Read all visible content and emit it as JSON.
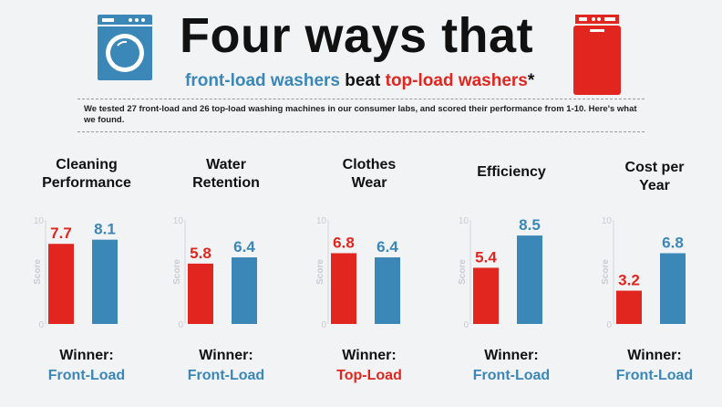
{
  "header": {
    "title": "Four ways that",
    "subtitle_front": "front-load washers",
    "subtitle_mid": "beat",
    "subtitle_top": "top-load washers",
    "subtitle_star": "*",
    "note": "We tested 27 front-load and 26 top-load washing machines in our consumer labs, and scored their performance from 1-10. Here's what we found."
  },
  "icons": {
    "left": "front-load-washer-icon",
    "right": "top-load-washer-icon"
  },
  "colors": {
    "top_load": "#e0261f",
    "front_load": "#3a87b8",
    "axis_text": "#c8ccd1"
  },
  "chart_data": [
    {
      "type": "bar",
      "title": "Cleaning Performance",
      "categories": [
        "Top-Load",
        "Front-Load"
      ],
      "values": [
        7.7,
        8.1
      ],
      "ylabel": "Score",
      "ylim": [
        0,
        10
      ],
      "yticks": [
        "10",
        "0"
      ],
      "winner_label": "Winner:",
      "winner": "Front-Load"
    },
    {
      "type": "bar",
      "title": "Water Retention",
      "categories": [
        "Top-Load",
        "Front-Load"
      ],
      "values": [
        5.8,
        6.4
      ],
      "ylabel": "Score",
      "ylim": [
        0,
        10
      ],
      "yticks": [
        "10",
        "0"
      ],
      "winner_label": "Winner:",
      "winner": "Front-Load"
    },
    {
      "type": "bar",
      "title": "Clothes Wear",
      "categories": [
        "Top-Load",
        "Front-Load"
      ],
      "values": [
        6.8,
        6.4
      ],
      "ylabel": "Score",
      "ylim": [
        0,
        10
      ],
      "yticks": [
        "10",
        "0"
      ],
      "winner_label": "Winner:",
      "winner": "Top-Load"
    },
    {
      "type": "bar",
      "title": "Efficiency",
      "categories": [
        "Top-Load",
        "Front-Load"
      ],
      "values": [
        5.4,
        8.5
      ],
      "ylabel": "Score",
      "ylim": [
        0,
        10
      ],
      "yticks": [
        "10",
        "0"
      ],
      "winner_label": "Winner:",
      "winner": "Front-Load"
    },
    {
      "type": "bar",
      "title": "Cost per Year",
      "categories": [
        "Top-Load",
        "Front-Load"
      ],
      "values": [
        3.2,
        6.8
      ],
      "ylabel": "Score",
      "ylim": [
        0,
        10
      ],
      "yticks": [
        "10",
        "0"
      ],
      "winner_label": "Winner:",
      "winner": "Front-Load"
    }
  ]
}
